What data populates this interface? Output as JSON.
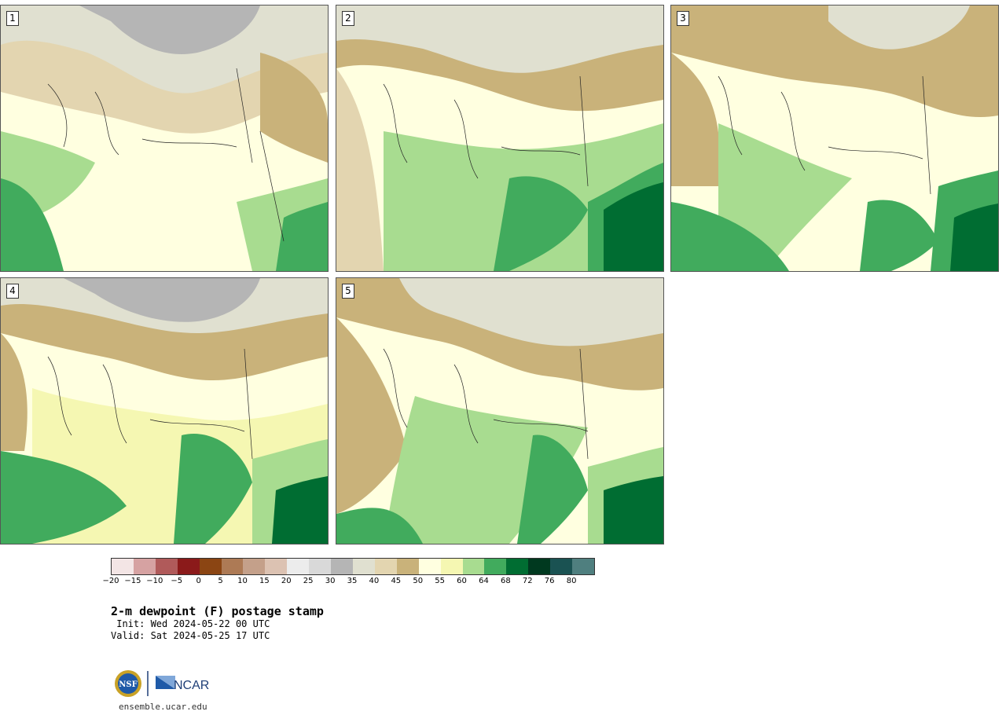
{
  "panels": [
    {
      "label": "1"
    },
    {
      "label": "2"
    },
    {
      "label": "3"
    },
    {
      "label": "4"
    },
    {
      "label": "5"
    }
  ],
  "colorbar": {
    "colors": [
      "#f3e5e5",
      "#d6a2a2",
      "#b05a5a",
      "#8b1a1a",
      "#8b4513",
      "#ad7a55",
      "#c4a08a",
      "#dcc2b2",
      "#ececec",
      "#d9d9d9",
      "#b5b5b5",
      "#e0e0d0",
      "#e3d5b0",
      "#c9b27a",
      "#ffffe0",
      "#f5f7b2",
      "#a8dc90",
      "#41ab5d",
      "#006d32",
      "#00391f",
      "#1a5252",
      "#4f7f7f"
    ],
    "ticks": [
      "−20",
      "−15",
      "−10",
      "−5",
      "0",
      "5",
      "10",
      "15",
      "20",
      "25",
      "30",
      "35",
      "40",
      "45",
      "50",
      "55",
      "60",
      "64",
      "68",
      "72",
      "76",
      "80"
    ]
  },
  "title": "2-m dewpoint (F) postage stamp",
  "init": " Init: Wed 2024-05-22 00 UTC",
  "valid": "Valid: Sat 2024-05-25 17 UTC",
  "logos": {
    "left": "NSF",
    "right": "NCAR"
  },
  "url": "ensemble.ucar.edu"
}
